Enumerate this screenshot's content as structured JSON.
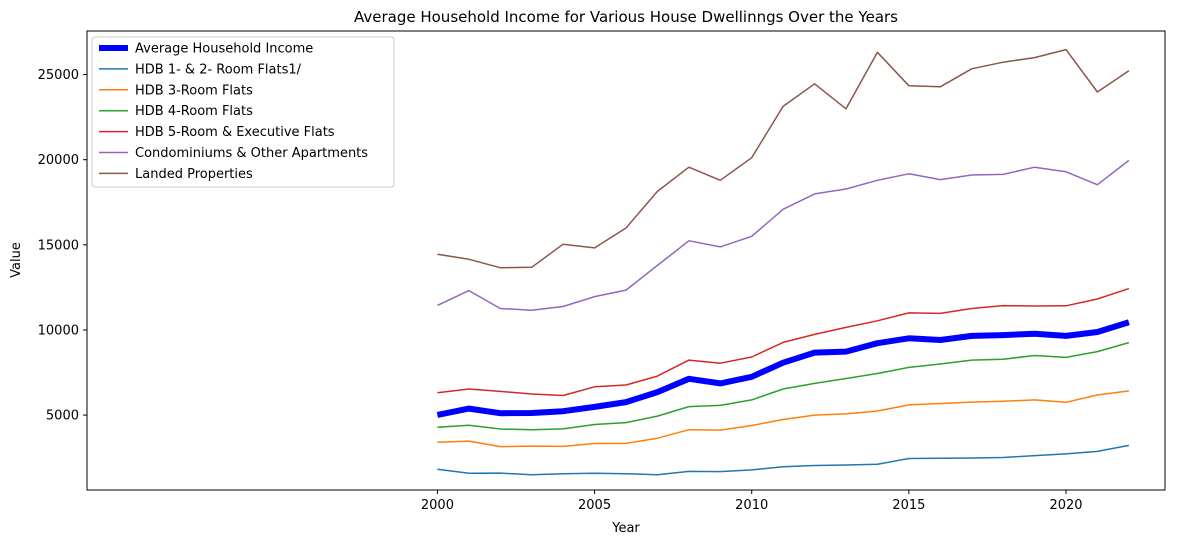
{
  "chart_data": {
    "type": "line",
    "title": "Average Household Income for Various House Dwellinngs Over the Years",
    "xlabel": "Year",
    "ylabel": "Value",
    "xlim": [
      1988.85,
      2023.15
    ],
    "ylim": [
      600,
      27560
    ],
    "xticks": [
      2000,
      2005,
      2010,
      2015,
      2020
    ],
    "yticks": [
      5000,
      10000,
      15000,
      20000,
      25000
    ],
    "grid": false,
    "legend_position": "upper-left",
    "x": [
      2000,
      2001,
      2002,
      2003,
      2004,
      2005,
      2006,
      2007,
      2008,
      2009,
      2010,
      2011,
      2012,
      2013,
      2014,
      2015,
      2016,
      2017,
      2018,
      2019,
      2020,
      2021,
      2022
    ],
    "series": [
      {
        "name": "Average Household Income",
        "color": "#0000ff",
        "width": 6,
        "values": [
          5010,
          5380,
          5110,
          5120,
          5230,
          5480,
          5760,
          6350,
          7130,
          6860,
          7250,
          8080,
          8670,
          8730,
          9220,
          9510,
          9410,
          9650,
          9700,
          9780,
          9650,
          9880,
          10450
        ]
      },
      {
        "name": "HDB 1- & 2- Room Flats1/",
        "color": "#1f77b4",
        "width": 1.5,
        "values": [
          1820,
          1580,
          1590,
          1490,
          1550,
          1580,
          1560,
          1490,
          1690,
          1680,
          1780,
          1960,
          2040,
          2070,
          2110,
          2450,
          2470,
          2480,
          2510,
          2620,
          2720,
          2870,
          3220
        ]
      },
      {
        "name": "HDB 3-Room Flats",
        "color": "#ff7f0e",
        "width": 1.5,
        "values": [
          3410,
          3470,
          3150,
          3180,
          3160,
          3330,
          3340,
          3640,
          4140,
          4120,
          4390,
          4740,
          5000,
          5070,
          5240,
          5600,
          5680,
          5760,
          5810,
          5890,
          5750,
          6180,
          6420
        ]
      },
      {
        "name": "HDB 4-Room Flats",
        "color": "#2ca02c",
        "width": 1.5,
        "values": [
          4290,
          4400,
          4180,
          4140,
          4190,
          4450,
          4560,
          4940,
          5500,
          5570,
          5890,
          6530,
          6860,
          7150,
          7440,
          7800,
          8000,
          8230,
          8280,
          8500,
          8390,
          8730,
          9260
        ]
      },
      {
        "name": "HDB 5-Room & Executive Flats",
        "color": "#d62728",
        "width": 1.5,
        "values": [
          6310,
          6530,
          6390,
          6240,
          6150,
          6660,
          6770,
          7290,
          8230,
          8050,
          8410,
          9270,
          9740,
          10150,
          10540,
          11000,
          10970,
          11260,
          11430,
          11410,
          11420,
          11820,
          12430
        ]
      },
      {
        "name": "Condominiums & Other Apartments",
        "color": "#9467bd",
        "width": 1.5,
        "values": [
          11440,
          12310,
          11260,
          11160,
          11380,
          11960,
          12340,
          13790,
          15240,
          14880,
          15500,
          17090,
          17990,
          18280,
          18790,
          19170,
          18830,
          19100,
          19140,
          19560,
          19290,
          18530,
          19960
        ]
      },
      {
        "name": "Landed Properties",
        "color": "#8c564b",
        "width": 1.5,
        "values": [
          14450,
          14150,
          13660,
          13680,
          15040,
          14820,
          15990,
          18140,
          19560,
          18790,
          20120,
          23130,
          24460,
          22990,
          26310,
          24340,
          24280,
          25340,
          25730,
          26000,
          26470,
          23980,
          25220
        ]
      }
    ]
  }
}
